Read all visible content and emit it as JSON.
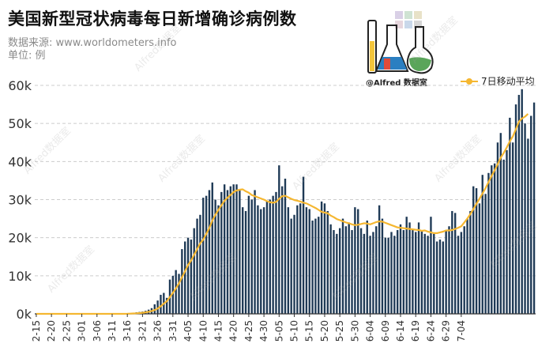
{
  "title": "美国新型冠状病毒每日新增确诊病例数",
  "source": "数据来源: www.worldometers.info",
  "unit": "单位: 例",
  "logo_text": "@Alfred 数据室",
  "watermark": "Alfred数据室",
  "colors": {
    "bar": "#1f3a56",
    "line": "#f5b731",
    "grid": "#cccccc"
  },
  "chart_data": {
    "type": "bar",
    "title": "美国新型冠状病毒每日新增确诊病例数",
    "ylim": [
      0,
      60000
    ],
    "yticks": [
      0,
      10000,
      20000,
      30000,
      40000,
      50000,
      60000
    ],
    "ytick_labels": [
      "0k",
      "10k",
      "20k",
      "30k",
      "40k",
      "50k",
      "60k"
    ],
    "grid": true,
    "legend_position": "top-right",
    "xtick_labels": [
      "2-15",
      "2-20",
      "2-25",
      "3-01",
      "3-06",
      "3-11",
      "3-16",
      "3-21",
      "3-26",
      "3-31",
      "4-05",
      "4-10",
      "4-15",
      "4-20",
      "4-25",
      "4-30",
      "5-05",
      "5-10",
      "5-15",
      "5-20",
      "5-25",
      "5-30",
      "6-04",
      "6-09",
      "6-14",
      "6-19",
      "6-24",
      "6-29",
      "7-04"
    ],
    "x_start": "2020-02-15",
    "series": [
      {
        "type": "bar",
        "values": [
          0,
          0,
          0,
          0,
          0,
          0,
          0,
          0,
          0,
          0,
          0,
          0,
          0,
          0,
          0,
          0,
          0,
          0,
          0,
          0,
          0,
          0,
          0,
          0,
          0,
          0,
          0,
          0,
          0,
          0,
          100,
          200,
          300,
          400,
          500,
          600,
          800,
          1100,
          1500,
          2500,
          3500,
          5000,
          5500,
          4200,
          9000,
          10000,
          11500,
          10500,
          17000,
          19000,
          20000,
          19500,
          22500,
          25000,
          26000,
          30500,
          31000,
          32500,
          34500,
          30000,
          28500,
          32000,
          34000,
          32500,
          33500,
          34000,
          34000,
          32500,
          28000,
          27000,
          31000,
          30000,
          32500,
          28500,
          27500,
          28000,
          29500,
          30000,
          31000,
          32000,
          39000,
          33500,
          35500,
          28000,
          25000,
          26000,
          28500,
          29000,
          36000,
          28000,
          27500,
          24500,
          25000,
          25500,
          29500,
          29000,
          27000,
          23500,
          22000,
          21000,
          22500,
          25000,
          23000,
          24000,
          22000,
          28000,
          27500,
          22500,
          21000,
          24500,
          20500,
          21500,
          23000,
          28500,
          25000,
          20000,
          20000,
          21500,
          20500,
          22000,
          23500,
          22000,
          25500,
          24000,
          22000,
          21500,
          24000,
          22000,
          21000,
          20500,
          25500,
          21000,
          19000,
          19500,
          19000,
          22000,
          23000,
          27000,
          26500,
          20500,
          21500,
          23000,
          25000,
          27000,
          33500,
          33000,
          29000,
          36500,
          31500,
          37000,
          39000,
          39500,
          45000,
          47500,
          40500,
          43000,
          51500,
          45000,
          55000,
          57500,
          59000,
          50000,
          46000,
          52000,
          55500
        ]
      },
      {
        "type": "line",
        "name": "7日移动平均",
        "values": [
          0,
          0,
          0,
          0,
          0,
          0,
          0,
          0,
          0,
          0,
          0,
          0,
          0,
          0,
          0,
          0,
          0,
          0,
          0,
          0,
          0,
          0,
          0,
          0,
          0,
          0,
          0,
          0,
          0,
          0,
          30,
          60,
          100,
          150,
          200,
          300,
          400,
          550,
          750,
          1000,
          1400,
          2000,
          2700,
          3300,
          4400,
          5500,
          6700,
          8000,
          9600,
          11200,
          12800,
          14000,
          15500,
          17000,
          18500,
          19500,
          21000,
          22500,
          24500,
          26000,
          27300,
          28500,
          29700,
          30500,
          31200,
          32000,
          32400,
          32600,
          32700,
          32200,
          31800,
          31200,
          30900,
          30600,
          30300,
          30000,
          29600,
          29300,
          29200,
          29400,
          30200,
          30900,
          31000,
          30600,
          30200,
          29900,
          29700,
          29500,
          29200,
          29000,
          28600,
          28200,
          27800,
          27300,
          26800,
          26600,
          26400,
          25800,
          25400,
          24900,
          24600,
          24300,
          24000,
          23800,
          23500,
          23300,
          23400,
          23600,
          23800,
          23700,
          23500,
          23800,
          24100,
          24300,
          24200,
          23900,
          23600,
          23300,
          23000,
          22700,
          22600,
          22500,
          22400,
          22300,
          22200,
          22100,
          22000,
          21800,
          21900,
          21600,
          21400,
          21200,
          21200,
          21400,
          21600,
          21900,
          21900,
          22000,
          22300,
          22600,
          23000,
          24000,
          25000,
          26200,
          27500,
          28900,
          30200,
          31600,
          33000,
          34600,
          36200,
          37700,
          39300,
          41000,
          42300,
          43700,
          45300,
          46600,
          48500,
          50500,
          51300,
          51800,
          52500
        ]
      }
    ]
  }
}
